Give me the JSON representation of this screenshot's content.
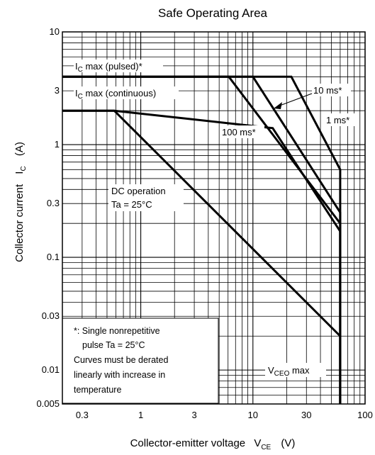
{
  "chart_data": {
    "type": "line",
    "title": "Safe Operating Area",
    "xscale": "log",
    "yscale": "log",
    "xlim": [
      0.2,
      100
    ],
    "ylim": [
      0.005,
      10
    ],
    "grid": true,
    "x_tick_labels": [
      "0.3",
      "1",
      "3",
      "10",
      "30",
      "100"
    ],
    "x_tick_values": [
      0.3,
      1,
      3,
      10,
      30,
      100
    ],
    "y_tick_labels": [
      "10",
      "3",
      "1",
      "0.3",
      "0.1",
      "0.03",
      "0.01",
      "0.005"
    ],
    "y_tick_values": [
      10,
      3,
      1,
      0.3,
      0.1,
      0.03,
      0.01,
      0.005
    ],
    "xlabel": {
      "main": "Collector-emitter voltage",
      "sym": "V",
      "sub": "CE",
      "unit": "(V)"
    },
    "ylabel": {
      "main": "Collector current",
      "sym": "I",
      "sub": "C",
      "unit": "(A)"
    },
    "series": [
      {
        "x": [
          0.2,
          22,
          60,
          60
        ],
        "y": [
          4,
          4,
          0.6,
          0.005
        ]
      },
      {
        "x": [
          0.2,
          6.1,
          60,
          60
        ],
        "y": [
          4,
          4,
          0.2,
          0.005
        ]
      },
      {
        "x": [
          0.2,
          10,
          60,
          60
        ],
        "y": [
          4,
          4,
          0.25,
          0.005
        ]
      },
      {
        "x": [
          0.2,
          0.58,
          15,
          60,
          60
        ],
        "y": [
          2,
          2,
          1.4,
          0.17,
          0.005
        ]
      },
      {
        "x": [
          0.2,
          0.58,
          60,
          60
        ],
        "y": [
          2,
          2,
          0.02,
          0.005
        ]
      }
    ],
    "annotations": {
      "ic_pulsed": {
        "sym": "I",
        "sub": "C",
        "text": " max (pulsed)*"
      },
      "ic_cont": {
        "sym": "I",
        "sub": "C",
        "text": " max (continuous)"
      },
      "ms10": "10 ms*",
      "ms1": "1 ms*",
      "ms100": "100 ms*",
      "dc_line1": "DC operation",
      "dc_line2": "Ta = 25°C",
      "vceo": {
        "sym": "V",
        "sub": "CEO",
        "text": " max"
      }
    },
    "note_box": [
      "*: Single nonrepetitive",
      "pulse    Ta = 25°C",
      "Curves must be derated",
      "linearly with increase in",
      "temperature"
    ]
  }
}
